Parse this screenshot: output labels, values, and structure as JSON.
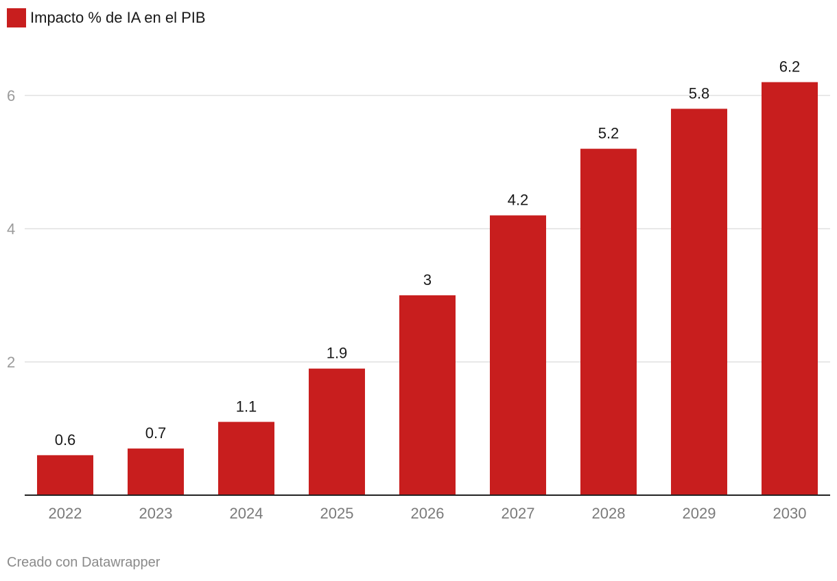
{
  "legend": {
    "label": "Impacto % de IA en el PIB",
    "color": "#c81e1e"
  },
  "footer": {
    "credit": "Creado con Datawrapper"
  },
  "chart_data": {
    "type": "bar",
    "categories": [
      "2022",
      "2023",
      "2024",
      "2025",
      "2026",
      "2027",
      "2028",
      "2029",
      "2030"
    ],
    "series": [
      {
        "name": "Impacto % de IA en el PIB",
        "values": [
          0.6,
          0.7,
          1.1,
          1.9,
          3,
          4.2,
          5.2,
          5.8,
          6.2
        ],
        "labels": [
          "0.6",
          "0.7",
          "1.1",
          "1.9",
          "3",
          "4.2",
          "5.2",
          "5.8",
          "6.2"
        ],
        "color": "#c81e1e"
      }
    ],
    "y_ticks": [
      2,
      4,
      6
    ],
    "ylim": [
      0,
      6.5
    ],
    "grid": true,
    "legend_position": "top-left",
    "colors": {
      "bar": "#c81e1e",
      "gridline": "#e0e0e0",
      "axis": "#222222",
      "tick_text": "#9a9a9a",
      "value_text": "#181818"
    }
  }
}
